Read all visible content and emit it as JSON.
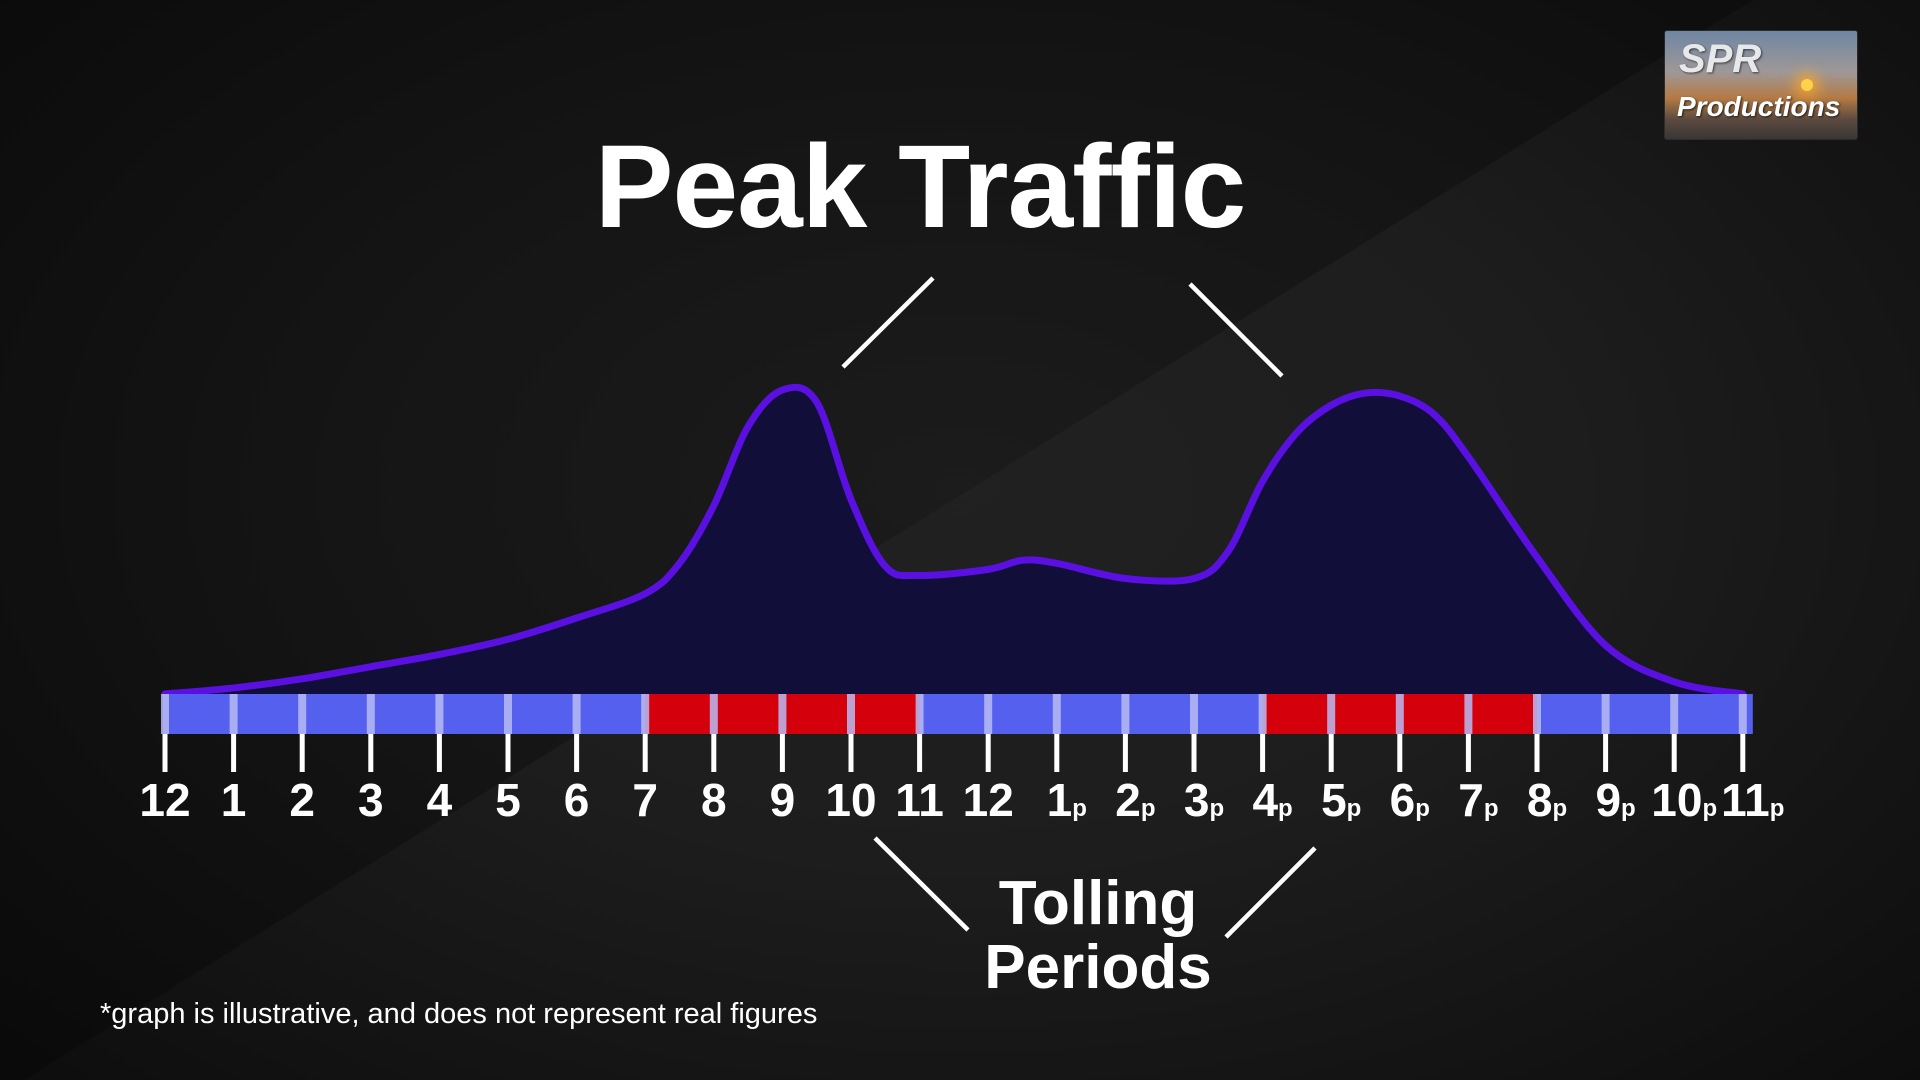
{
  "title": "Peak Traffic",
  "tolling_label_line1": "Tolling",
  "tolling_label_line2": "Periods",
  "footnote": "*graph is illustrative, and does not represent real figures",
  "logo": {
    "line1": "SPR",
    "line2": "Productions"
  },
  "colors": {
    "background": "#151515",
    "curve_stroke": "#5a10e0",
    "curve_fill": "#120e3c",
    "bar_offpeak": "#5560ee",
    "bar_tolling": "#d4000c",
    "tick": "#ffffff",
    "text": "#ffffff"
  },
  "chart_data": {
    "type": "area",
    "title": "Peak Traffic",
    "note": "*graph is illustrative, and does not represent real figures",
    "x_ticks": [
      {
        "num": "12",
        "suffix": ""
      },
      {
        "num": "1",
        "suffix": ""
      },
      {
        "num": "2",
        "suffix": ""
      },
      {
        "num": "3",
        "suffix": ""
      },
      {
        "num": "4",
        "suffix": ""
      },
      {
        "num": "5",
        "suffix": ""
      },
      {
        "num": "6",
        "suffix": ""
      },
      {
        "num": "7",
        "suffix": ""
      },
      {
        "num": "8",
        "suffix": ""
      },
      {
        "num": "9",
        "suffix": ""
      },
      {
        "num": "10",
        "suffix": ""
      },
      {
        "num": "11",
        "suffix": ""
      },
      {
        "num": "12",
        "suffix": ""
      },
      {
        "num": "1",
        "suffix": "p"
      },
      {
        "num": "2",
        "suffix": "p"
      },
      {
        "num": "3",
        "suffix": "p"
      },
      {
        "num": "4",
        "suffix": "p"
      },
      {
        "num": "5",
        "suffix": "p"
      },
      {
        "num": "6",
        "suffix": "p"
      },
      {
        "num": "7",
        "suffix": "p"
      },
      {
        "num": "8",
        "suffix": "p"
      },
      {
        "num": "9",
        "suffix": "p"
      },
      {
        "num": "10",
        "suffix": "p"
      },
      {
        "num": "11",
        "suffix": "p"
      }
    ],
    "xlim": [
      0,
      23
    ],
    "ylim": [
      0,
      100
    ],
    "series": [
      {
        "x": [
          0,
          1,
          2,
          3,
          4,
          5,
          6,
          7,
          7.5,
          8,
          8.5,
          9,
          9.5,
          10,
          10.5,
          11,
          12,
          12.5,
          13,
          14,
          15,
          15.5,
          16,
          16.5,
          17,
          17.5,
          18,
          18.5,
          19,
          20,
          21,
          22,
          23
        ],
        "y": [
          0,
          2,
          5,
          9,
          13,
          18,
          25,
          33,
          43,
          62,
          88,
          100,
          96,
          64,
          42,
          39,
          41,
          44,
          43,
          38,
          38,
          47,
          70,
          86,
          95,
          99,
          98,
          92,
          78,
          45,
          16,
          4,
          0
        ]
      }
    ],
    "tolling_periods": [
      {
        "start": 7,
        "end": 11
      },
      {
        "start": 16,
        "end": 20
      }
    ],
    "annotations": [
      {
        "text": "Peak Traffic",
        "points_to": "curve peaks"
      },
      {
        "text": "Tolling Periods",
        "points_to": "red bar segments"
      }
    ],
    "grid": false,
    "legend": "none"
  }
}
